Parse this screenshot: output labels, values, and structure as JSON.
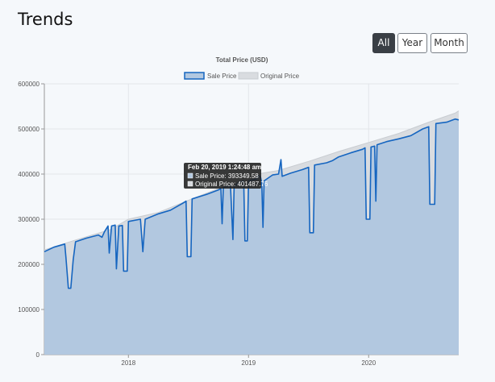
{
  "page": {
    "title": "Trends"
  },
  "range_buttons": [
    {
      "label": "All",
      "active": true
    },
    {
      "label": "Year",
      "active": false
    },
    {
      "label": "Month",
      "active": false
    }
  ],
  "colors": {
    "sale": "#1565c0",
    "sale_fill": "#b2c8e0",
    "original": "#d9dce0"
  },
  "tooltip": {
    "title": "Feb 20, 2019 1:24:48 am",
    "sale_line": "Sale Price: 393349.58",
    "original_line": "Original Price: 401487.76"
  },
  "chart_data": {
    "type": "area",
    "title": "Total Price (USD)",
    "xlabel": "",
    "ylabel": "",
    "ylim": [
      0,
      600000
    ],
    "xlim": [
      2017.3,
      2020.75
    ],
    "y_ticks": [
      0,
      100000,
      200000,
      300000,
      400000,
      500000,
      600000
    ],
    "x_ticks": [
      {
        "value": 2018,
        "label": "2018"
      },
      {
        "value": 2019,
        "label": "2019"
      },
      {
        "value": 2020,
        "label": "2020"
      }
    ],
    "legend": {
      "position": "top",
      "entries": [
        "Sale Price",
        "Original Price"
      ]
    },
    "series": [
      {
        "name": "Sale Price",
        "points": [
          [
            2017.3,
            228000
          ],
          [
            2017.38,
            238000
          ],
          [
            2017.47,
            245000
          ],
          [
            2017.48,
            215000
          ],
          [
            2017.5,
            147000
          ],
          [
            2017.52,
            147000
          ],
          [
            2017.54,
            210000
          ],
          [
            2017.56,
            250000
          ],
          [
            2017.65,
            258000
          ],
          [
            2017.75,
            265000
          ],
          [
            2017.78,
            260000
          ],
          [
            2017.8,
            272000
          ],
          [
            2017.83,
            285000
          ],
          [
            2017.84,
            225000
          ],
          [
            2017.86,
            285000
          ],
          [
            2017.89,
            287000
          ],
          [
            2017.9,
            190000
          ],
          [
            2017.92,
            285000
          ],
          [
            2017.95,
            286000
          ],
          [
            2017.96,
            185000
          ],
          [
            2017.99,
            185000
          ],
          [
            2018.0,
            295000
          ],
          [
            2018.1,
            300000
          ],
          [
            2018.12,
            228000
          ],
          [
            2018.14,
            300000
          ],
          [
            2018.25,
            312000
          ],
          [
            2018.35,
            320000
          ],
          [
            2018.45,
            335000
          ],
          [
            2018.48,
            340000
          ],
          [
            2018.49,
            217000
          ],
          [
            2018.52,
            217000
          ],
          [
            2018.53,
            345000
          ],
          [
            2018.65,
            355000
          ],
          [
            2018.75,
            365000
          ],
          [
            2018.77,
            368000
          ],
          [
            2018.78,
            290000
          ],
          [
            2018.79,
            370000
          ],
          [
            2018.85,
            375000
          ],
          [
            2018.87,
            255000
          ],
          [
            2018.88,
            372000
          ],
          [
            2018.92,
            382000
          ],
          [
            2018.96,
            385000
          ],
          [
            2018.97,
            252000
          ],
          [
            2018.99,
            252000
          ],
          [
            2019.0,
            385000
          ],
          [
            2019.05,
            388000
          ],
          [
            2019.07,
            390000
          ],
          [
            2019.08,
            397000
          ],
          [
            2019.1,
            393349
          ],
          [
            2019.11,
            380000
          ],
          [
            2019.12,
            282000
          ],
          [
            2019.13,
            385000
          ],
          [
            2019.2,
            398000
          ],
          [
            2019.25,
            400000
          ],
          [
            2019.27,
            432000
          ],
          [
            2019.28,
            395000
          ],
          [
            2019.35,
            402000
          ],
          [
            2019.45,
            410000
          ],
          [
            2019.5,
            415000
          ],
          [
            2019.51,
            270000
          ],
          [
            2019.54,
            270000
          ],
          [
            2019.55,
            420000
          ],
          [
            2019.65,
            425000
          ],
          [
            2019.7,
            430000
          ],
          [
            2019.75,
            438000
          ],
          [
            2019.85,
            447000
          ],
          [
            2019.95,
            455000
          ],
          [
            2019.97,
            458000
          ],
          [
            2019.98,
            300000
          ],
          [
            2020.01,
            300000
          ],
          [
            2020.02,
            460000
          ],
          [
            2020.05,
            462000
          ],
          [
            2020.06,
            340000
          ],
          [
            2020.07,
            465000
          ],
          [
            2020.15,
            472000
          ],
          [
            2020.25,
            478000
          ],
          [
            2020.35,
            485000
          ],
          [
            2020.45,
            500000
          ],
          [
            2020.5,
            505000
          ],
          [
            2020.51,
            333000
          ],
          [
            2020.55,
            333000
          ],
          [
            2020.56,
            512000
          ],
          [
            2020.65,
            515000
          ],
          [
            2020.72,
            522000
          ],
          [
            2020.75,
            520000
          ]
        ]
      },
      {
        "name": "Original Price",
        "points": [
          [
            2017.3,
            232000
          ],
          [
            2017.56,
            254000
          ],
          [
            2017.85,
            277000
          ],
          [
            2018.0,
            300000
          ],
          [
            2018.25,
            315000
          ],
          [
            2018.5,
            342000
          ],
          [
            2018.75,
            368000
          ],
          [
            2019.0,
            388000
          ],
          [
            2019.1,
            401487
          ],
          [
            2019.25,
            408000
          ],
          [
            2019.5,
            428000
          ],
          [
            2019.75,
            450000
          ],
          [
            2020.0,
            470000
          ],
          [
            2020.25,
            490000
          ],
          [
            2020.5,
            515000
          ],
          [
            2020.72,
            535000
          ],
          [
            2020.75,
            540000
          ]
        ]
      }
    ]
  }
}
